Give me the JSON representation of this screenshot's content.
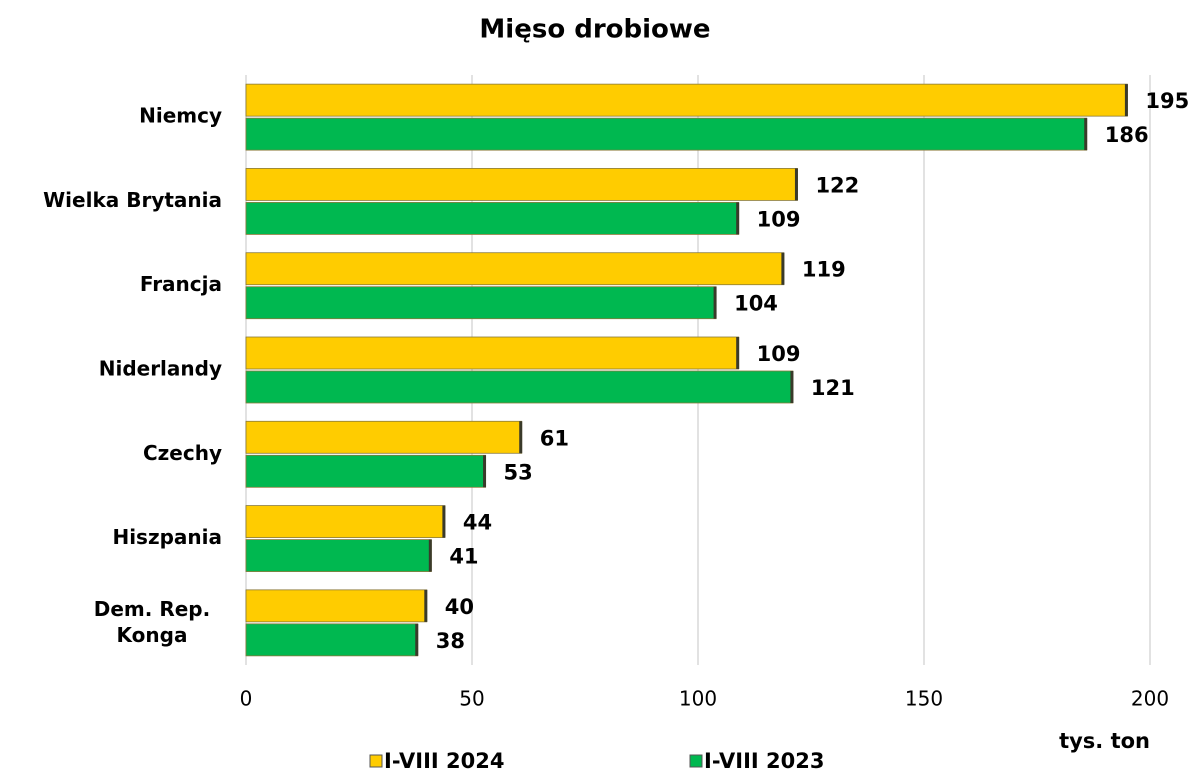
{
  "chart_data": {
    "type": "bar",
    "orientation": "horizontal",
    "title": "Mięso drobiowe",
    "categories": [
      "Niemcy",
      "Wielka Brytania",
      "Francja",
      "Niderlandy",
      "Czechy",
      "Hiszpania",
      "Dem. Rep. Konga"
    ],
    "series": [
      {
        "name": "I-VIII 2024",
        "color": "#ffcc00",
        "label_color": "#9c4a10",
        "values": [
          195,
          122,
          119,
          109,
          61,
          44,
          40
        ]
      },
      {
        "name": "I-VIII 2023",
        "color": "#00b850",
        "label_color": "#4f6228",
        "values": [
          186,
          109,
          104,
          121,
          53,
          41,
          38
        ]
      }
    ],
    "xlim": [
      0,
      200
    ],
    "xticks": [
      0,
      50,
      100,
      150,
      200
    ],
    "grid": true,
    "x_label": "tys. ton",
    "legend": "bottom"
  }
}
